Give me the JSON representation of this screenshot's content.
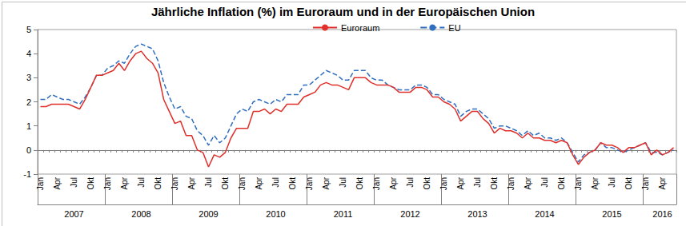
{
  "chart_data": {
    "type": "line",
    "title": "Jährliche Inflation (%) im Euroraum und in der Europäischen Union",
    "categories": [
      "Jan",
      null,
      null,
      "Apr",
      null,
      null,
      "Jul",
      null,
      null,
      "Okt",
      null,
      null,
      "Jan",
      null,
      null,
      "Apr",
      null,
      null,
      "Jul",
      null,
      null,
      "Okt",
      null,
      null,
      "Jan",
      null,
      null,
      "Apr",
      null,
      null,
      "Jul",
      null,
      null,
      "Okt",
      null,
      null,
      "Jan",
      null,
      null,
      "Apr",
      null,
      null,
      "Jul",
      null,
      null,
      "Okt",
      null,
      null,
      "Jan",
      null,
      null,
      "Apr",
      null,
      null,
      "Jul",
      null,
      null,
      "Okt",
      null,
      null,
      "Jan",
      null,
      null,
      "Apr",
      null,
      null,
      "Jul",
      null,
      null,
      "Okt",
      null,
      null,
      "Jan",
      null,
      null,
      "Apr",
      null,
      null,
      "Jul",
      null,
      null,
      "Okt",
      null,
      null,
      "Jan",
      null,
      null,
      "Apr",
      null,
      null,
      "Jul",
      null,
      null,
      "Okt",
      null,
      null,
      "Jan",
      null,
      null,
      "Apr",
      null,
      null,
      "Jul",
      null,
      null,
      "Okt",
      null,
      null,
      "Jan",
      null,
      null,
      "Apr",
      null,
      null
    ],
    "years": [
      "2007",
      "2008",
      "2009",
      "2010",
      "2011",
      "2012",
      "2013",
      "2014",
      "2015",
      "2016"
    ],
    "series": [
      {
        "name": "Euroraum",
        "color": "#e0302b",
        "line_style": "solid",
        "values": [
          1.8,
          1.8,
          1.9,
          1.9,
          1.9,
          1.9,
          1.8,
          1.7,
          2.1,
          2.6,
          3.1,
          3.1,
          3.2,
          3.3,
          3.6,
          3.3,
          3.7,
          4.0,
          4.1,
          3.8,
          3.6,
          3.2,
          2.1,
          1.6,
          1.1,
          1.2,
          0.6,
          0.6,
          0.0,
          -0.1,
          -0.7,
          -0.2,
          -0.3,
          -0.1,
          0.5,
          0.9,
          0.9,
          0.9,
          1.6,
          1.6,
          1.7,
          1.5,
          1.7,
          1.6,
          1.9,
          1.9,
          1.9,
          2.2,
          2.3,
          2.4,
          2.7,
          2.8,
          2.7,
          2.7,
          2.6,
          2.5,
          3.0,
          3.0,
          3.0,
          2.8,
          2.7,
          2.7,
          2.7,
          2.6,
          2.4,
          2.4,
          2.4,
          2.6,
          2.6,
          2.5,
          2.2,
          2.2,
          2.0,
          1.9,
          1.7,
          1.2,
          1.4,
          1.6,
          1.6,
          1.3,
          1.1,
          0.7,
          0.9,
          0.8,
          0.8,
          0.7,
          0.5,
          0.7,
          0.5,
          0.5,
          0.4,
          0.4,
          0.3,
          0.4,
          0.3,
          -0.2,
          -0.6,
          -0.3,
          -0.1,
          0.0,
          0.3,
          0.2,
          0.2,
          0.1,
          -0.1,
          0.1,
          0.1,
          0.2,
          0.3,
          -0.2,
          0.0,
          -0.2,
          -0.1,
          0.1
        ]
      },
      {
        "name": "EU",
        "color": "#2f6fc0",
        "line_style": "dashed",
        "values": [
          2.1,
          2.1,
          2.3,
          2.2,
          2.1,
          2.1,
          2.0,
          1.9,
          2.2,
          2.6,
          3.1,
          3.1,
          3.4,
          3.5,
          3.7,
          3.6,
          4.0,
          4.3,
          4.4,
          4.3,
          4.2,
          3.7,
          2.8,
          2.2,
          1.7,
          1.8,
          1.4,
          1.3,
          0.8,
          0.6,
          0.2,
          0.6,
          0.3,
          0.5,
          1.0,
          1.5,
          1.7,
          1.6,
          2.0,
          2.1,
          2.0,
          1.9,
          2.1,
          2.0,
          2.3,
          2.3,
          2.3,
          2.7,
          2.7,
          2.9,
          3.1,
          3.3,
          3.2,
          3.1,
          2.9,
          2.9,
          3.3,
          3.3,
          3.3,
          3.0,
          2.9,
          2.9,
          2.7,
          2.6,
          2.5,
          2.5,
          2.5,
          2.7,
          2.7,
          2.6,
          2.3,
          2.3,
          2.1,
          2.0,
          1.9,
          1.4,
          1.6,
          1.7,
          1.7,
          1.5,
          1.3,
          0.9,
          1.0,
          1.0,
          0.9,
          0.8,
          0.6,
          0.8,
          0.6,
          0.7,
          0.5,
          0.5,
          0.4,
          0.5,
          0.3,
          -0.1,
          -0.5,
          -0.2,
          -0.1,
          0.0,
          0.3,
          0.1,
          0.1,
          0.0,
          -0.1,
          0.0,
          0.1,
          0.2,
          0.3,
          -0.1,
          -0.1,
          -0.2,
          -0.1,
          0.0
        ]
      }
    ],
    "ylim": [
      -1,
      5
    ],
    "yticks": [
      -1,
      0,
      1,
      2,
      3,
      4,
      5
    ],
    "grid": false,
    "legend": "top"
  }
}
